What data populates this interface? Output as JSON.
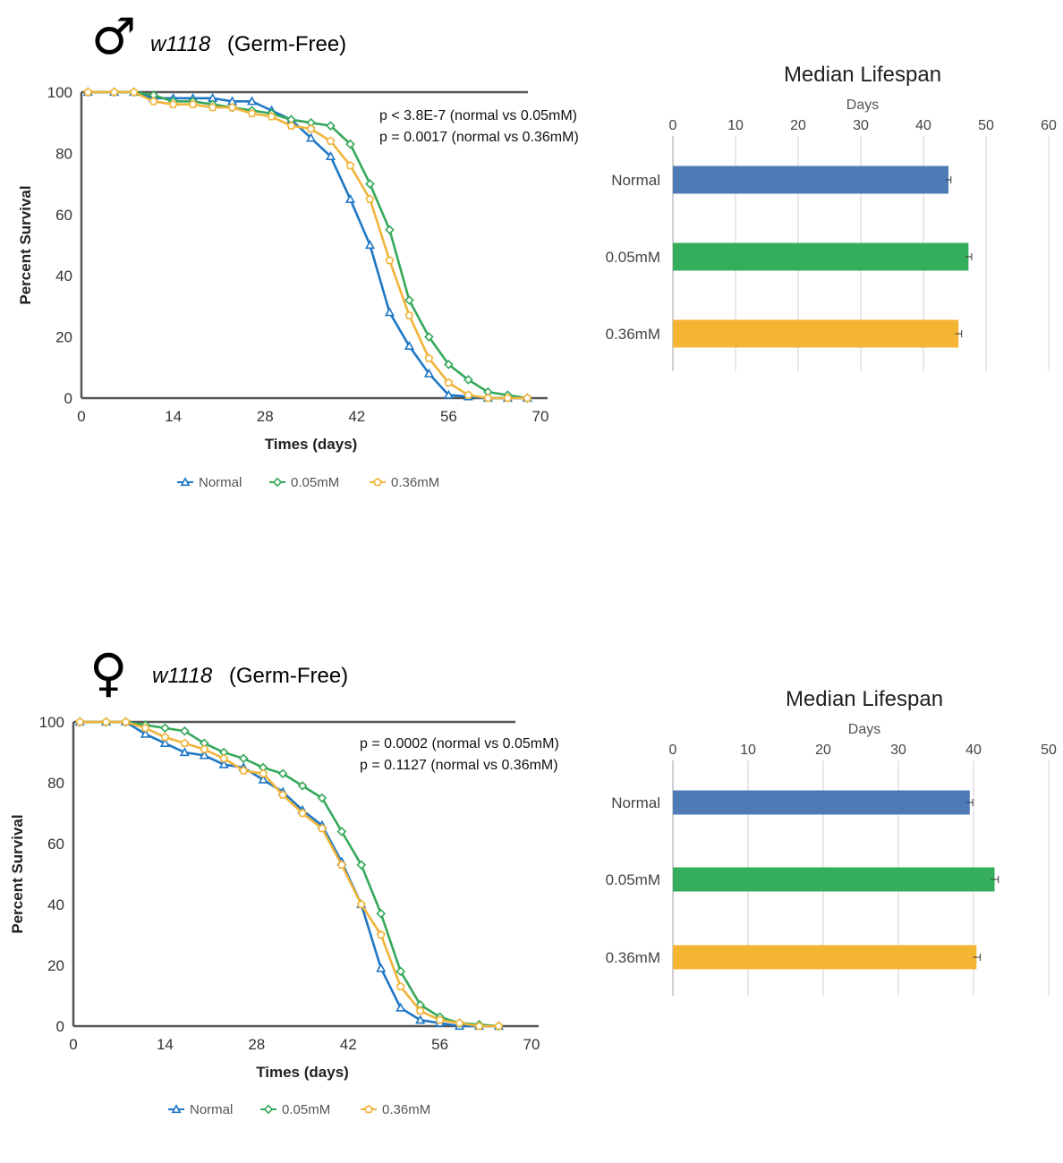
{
  "colors": {
    "normal": "#1f77c4",
    "mM005": "#35a85a",
    "mM036": "#f0b43a",
    "bar_normal": "#4e7ab5",
    "bar_005": "#35ae5c",
    "bar_036": "#f4b434"
  },
  "panels": [
    {
      "sex_symbol": "♂",
      "title_italic": "w1118",
      "title_rest": "(Germ-Free)",
      "pvalue_lines": [
        "p < 3.8E-7 (normal vs 0.05mM)",
        "p = 0.0017 (normal vs 0.36mM)"
      ],
      "legend": [
        "Normal",
        "0.05mM",
        "0.36mM"
      ],
      "bar_title": "Median Lifespan",
      "bar_axis_title": "Days",
      "bar_categories": [
        "Normal",
        "0.05mM",
        "0.36mM"
      ]
    },
    {
      "sex_symbol": "♀",
      "title_italic": "w1118",
      "title_rest": "(Germ-Free)",
      "pvalue_lines": [
        "p = 0.0002 (normal vs 0.05mM)",
        "p = 0.1127 (normal vs 0.36mM)"
      ],
      "legend": [
        "Normal",
        "0.05mM",
        "0.36mM"
      ],
      "bar_title": "Median Lifespan",
      "bar_axis_title": "Days",
      "bar_categories": [
        "Normal",
        "0.05mM",
        "0.36mM"
      ]
    }
  ],
  "chart_data": [
    {
      "type": "line",
      "xlabel": "Times (days)",
      "ylabel": "Percent Survival",
      "xlim": [
        0,
        70
      ],
      "ylim": [
        0,
        100
      ],
      "xticks": [
        0,
        14,
        28,
        42,
        56,
        70
      ],
      "yticks": [
        0,
        20,
        40,
        60,
        80,
        100
      ],
      "series": [
        {
          "name": "Normal",
          "marker": "triangle",
          "x": [
            1,
            5,
            8,
            11,
            14,
            17,
            20,
            23,
            26,
            29,
            32,
            35,
            38,
            41,
            44,
            47,
            50,
            53,
            56,
            59,
            62,
            65,
            68
          ],
          "y": [
            100,
            100,
            100,
            98,
            98,
            98,
            98,
            97,
            97,
            94,
            91,
            85,
            79,
            65,
            50,
            28,
            17,
            8,
            1,
            0.5,
            0,
            0,
            0
          ]
        },
        {
          "name": "0.05mM",
          "marker": "diamond",
          "x": [
            1,
            5,
            8,
            11,
            14,
            17,
            20,
            23,
            26,
            29,
            32,
            35,
            38,
            41,
            44,
            47,
            50,
            53,
            56,
            59,
            62,
            65,
            68
          ],
          "y": [
            100,
            100,
            100,
            99,
            97,
            97,
            96,
            95,
            94,
            93,
            91,
            90,
            89,
            83,
            70,
            55,
            32,
            20,
            11,
            6,
            2,
            1,
            0
          ]
        },
        {
          "name": "0.36mM",
          "marker": "pentagon",
          "x": [
            1,
            5,
            8,
            11,
            14,
            17,
            20,
            23,
            26,
            29,
            32,
            35,
            38,
            41,
            44,
            47,
            50,
            53,
            56,
            59,
            62,
            65,
            68
          ],
          "y": [
            100,
            100,
            100,
            97,
            96,
            96,
            95,
            95,
            93,
            92,
            89,
            88,
            84,
            76,
            65,
            45,
            27,
            13,
            5,
            1,
            0,
            0,
            0
          ]
        }
      ]
    },
    {
      "type": "bar",
      "orientation": "horizontal",
      "title": "Median Lifespan",
      "xlabel": "Days",
      "xlim": [
        0,
        60
      ],
      "xticks": [
        0,
        10,
        20,
        30,
        40,
        50,
        60
      ],
      "categories": [
        "Normal",
        "0.05mM",
        "0.36mM"
      ],
      "values": [
        44,
        47.2,
        45.6
      ],
      "errors": [
        0.4,
        0.5,
        0.5
      ]
    },
    {
      "type": "line",
      "xlabel": "Times (days)",
      "ylabel": "Percent Survival",
      "xlim": [
        0,
        70
      ],
      "ylim": [
        0,
        100
      ],
      "xticks": [
        0,
        14,
        28,
        42,
        56,
        70
      ],
      "yticks": [
        0,
        20,
        40,
        60,
        80,
        100
      ],
      "series": [
        {
          "name": "Normal",
          "marker": "triangle",
          "x": [
            1,
            5,
            8,
            11,
            14,
            17,
            20,
            23,
            26,
            29,
            32,
            35,
            38,
            41,
            44,
            47,
            50,
            53,
            56,
            59,
            62,
            65
          ],
          "y": [
            100,
            100,
            100,
            96,
            93,
            90,
            89,
            86,
            85,
            81,
            77,
            71,
            66,
            54,
            40,
            19,
            6,
            2,
            1,
            0,
            0,
            0
          ]
        },
        {
          "name": "0.05mM",
          "marker": "diamond",
          "x": [
            1,
            5,
            8,
            11,
            14,
            17,
            20,
            23,
            26,
            29,
            32,
            35,
            38,
            41,
            44,
            47,
            50,
            53,
            56,
            59,
            62,
            65
          ],
          "y": [
            100,
            100,
            100,
            99,
            98,
            97,
            93,
            90,
            88,
            85,
            83,
            79,
            75,
            64,
            53,
            37,
            18,
            7,
            3,
            1,
            0.5,
            0
          ]
        },
        {
          "name": "0.36mM",
          "marker": "pentagon",
          "x": [
            1,
            5,
            8,
            11,
            14,
            17,
            20,
            23,
            26,
            29,
            32,
            35,
            38,
            41,
            44,
            47,
            50,
            53,
            56,
            59,
            62,
            65
          ],
          "y": [
            100,
            100,
            100,
            98,
            95,
            93,
            91,
            88,
            84,
            83,
            76,
            70,
            65,
            53,
            40,
            30,
            13,
            5,
            2,
            1,
            0,
            0
          ]
        }
      ]
    },
    {
      "type": "bar",
      "orientation": "horizontal",
      "title": "Median Lifespan",
      "xlabel": "Days",
      "xlim": [
        0,
        50
      ],
      "xticks": [
        0,
        10,
        20,
        30,
        40,
        50
      ],
      "categories": [
        "Normal",
        "0.05mM",
        "0.36mM"
      ],
      "values": [
        39.5,
        42.8,
        40.4
      ],
      "errors": [
        0.4,
        0.5,
        0.5
      ]
    }
  ]
}
